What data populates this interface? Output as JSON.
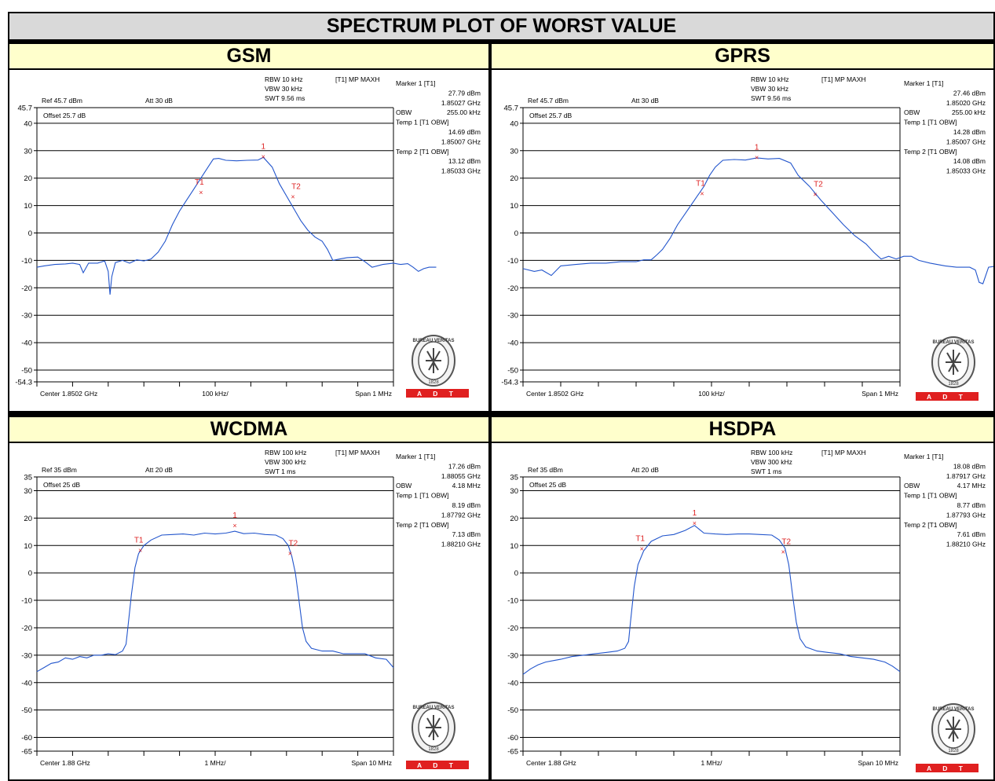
{
  "title": "SPECTRUM PLOT OF WORST VALUE",
  "sections": [
    "GSM",
    "GPRS",
    "WCDMA",
    "HSDPA"
  ],
  "colors": {
    "trace": "#2255cc",
    "marker": "#dd2222",
    "grid": "#000000",
    "header_title_bg": "#d9d9d9",
    "header_section_bg": "#ffffcc",
    "adt_red": "#e02020"
  },
  "logo": {
    "name": "bureau-veritas-seal",
    "text": "BUREAU VERITAS",
    "year": "1828",
    "badge": "A D T"
  },
  "chart_data": [
    {
      "type": "line",
      "panel": "GSM",
      "y_labels": [
        "45.7",
        "40",
        "30",
        "20",
        "10",
        "0",
        "-10",
        "-20",
        "-30",
        "-40",
        "-50",
        "-54.3"
      ],
      "ylim": [
        -54.3,
        45.7
      ],
      "settings": {
        "rbw": "RBW 10 kHz",
        "vbw": "VBW 30 kHz",
        "swt": "SWT 9.56 ms",
        "mode": "[T1] MP MAXH",
        "ref": "Ref 45.7 dBm",
        "att": "Att  30 dB",
        "offset": "Offset 25.7 dB"
      },
      "readout": [
        [
          "Marker 1 [T1]",
          ""
        ],
        [
          "",
          "27.79 dBm"
        ],
        [
          "",
          "1.85027 GHz"
        ],
        [
          "OBW",
          "255.00 kHz"
        ],
        [
          "Temp 1 [T1 OBW]",
          ""
        ],
        [
          "",
          "14.69 dBm"
        ],
        [
          "",
          "1.85007 GHz"
        ],
        [
          "Temp 2 [T1 OBW]",
          ""
        ],
        [
          "",
          "13.12 dBm"
        ],
        [
          "",
          "1.85033 GHz"
        ]
      ],
      "footer": {
        "center": "Center 1.8502 GHz",
        "div": "100 kHz/",
        "span": "Span 1 MHz"
      },
      "trace": [
        [
          0,
          -12.5
        ],
        [
          0.2,
          -12
        ],
        [
          0.5,
          -11.5
        ],
        [
          0.8,
          -11.3
        ],
        [
          1,
          -11
        ],
        [
          1.2,
          -11.5
        ],
        [
          1.3,
          -14.5
        ],
        [
          1.45,
          -11
        ],
        [
          1.7,
          -11
        ],
        [
          1.9,
          -10.2
        ],
        [
          2,
          -14
        ],
        [
          2.05,
          -22.5
        ],
        [
          2.1,
          -16
        ],
        [
          2.2,
          -10.8
        ],
        [
          2.4,
          -10
        ],
        [
          2.6,
          -11
        ],
        [
          2.8,
          -9.8
        ],
        [
          3,
          -10.2
        ],
        [
          3.2,
          -9.5
        ],
        [
          3.4,
          -7
        ],
        [
          3.6,
          -3
        ],
        [
          3.8,
          3
        ],
        [
          4,
          8
        ],
        [
          4.2,
          12
        ],
        [
          4.4,
          16
        ],
        [
          4.6,
          20
        ],
        [
          4.8,
          24
        ],
        [
          4.95,
          27
        ],
        [
          5.1,
          27.2
        ],
        [
          5.3,
          26.5
        ],
        [
          5.6,
          26.3
        ],
        [
          5.9,
          26.5
        ],
        [
          6.2,
          26.6
        ],
        [
          6.35,
          27.6
        ],
        [
          6.6,
          24
        ],
        [
          6.8,
          18
        ],
        [
          7,
          13.5
        ],
        [
          7.2,
          9
        ],
        [
          7.4,
          4.5
        ],
        [
          7.6,
          1
        ],
        [
          7.8,
          -1.5
        ],
        [
          8,
          -3
        ],
        [
          8.15,
          -6
        ],
        [
          8.3,
          -10
        ],
        [
          8.5,
          -9.5
        ],
        [
          8.7,
          -9
        ],
        [
          9,
          -8.8
        ],
        [
          9.2,
          -10.5
        ],
        [
          9.4,
          -12.5
        ],
        [
          9.7,
          -11.5
        ],
        [
          10,
          -11
        ],
        [
          10.2,
          -11.5
        ],
        [
          10.4,
          -11.2
        ],
        [
          10.55,
          -12.5
        ],
        [
          10.7,
          -14
        ],
        [
          10.85,
          -13
        ],
        [
          11,
          -12.5
        ],
        [
          11.2,
          -12.5
        ]
      ],
      "markers": [
        {
          "label": "1",
          "x": 6.35,
          "y": 27.79
        },
        {
          "label": "T1",
          "x": 4.6,
          "y": 14.69
        },
        {
          "label": "T2",
          "x": 7.18,
          "y": 13.12
        }
      ]
    },
    {
      "type": "line",
      "panel": "GPRS",
      "y_labels": [
        "45.7",
        "40",
        "30",
        "20",
        "10",
        "0",
        "-10",
        "-20",
        "-30",
        "-40",
        "-50",
        "-54.3"
      ],
      "ylim": [
        -54.3,
        45.7
      ],
      "settings": {
        "rbw": "RBW 10 kHz",
        "vbw": "VBW 30 kHz",
        "swt": "SWT 9.56 ms",
        "mode": "[T1] MP MAXH",
        "ref": "Ref 45.7 dBm",
        "att": "Att  30 dB",
        "offset": "Offset 25.7 dB"
      },
      "readout": [
        [
          "Marker 1 [T1]",
          ""
        ],
        [
          "",
          "27.46 dBm"
        ],
        [
          "",
          "1.85020 GHz"
        ],
        [
          "OBW",
          "255.00 kHz"
        ],
        [
          "Temp 1 [T1 OBW]",
          ""
        ],
        [
          "",
          "14.28 dBm"
        ],
        [
          "",
          "1.85007 GHz"
        ],
        [
          "Temp 2 [T1 OBW]",
          ""
        ],
        [
          "",
          "14.08 dBm"
        ],
        [
          "",
          "1.85033 GHz"
        ]
      ],
      "footer": {
        "center": "Center 1.8502 GHz",
        "div": "100 kHz/",
        "span": "Span 1 MHz"
      },
      "trace": [
        [
          0,
          -13
        ],
        [
          0.3,
          -14
        ],
        [
          0.5,
          -13.5
        ],
        [
          0.75,
          -15.5
        ],
        [
          1,
          -12
        ],
        [
          1.4,
          -11.5
        ],
        [
          1.8,
          -11
        ],
        [
          2.2,
          -11
        ],
        [
          2.6,
          -10.5
        ],
        [
          3,
          -10.5
        ],
        [
          3.2,
          -9.8
        ],
        [
          3.4,
          -9.8
        ],
        [
          3.55,
          -8
        ],
        [
          3.7,
          -6
        ],
        [
          3.9,
          -2
        ],
        [
          4.1,
          3
        ],
        [
          4.35,
          8
        ],
        [
          4.6,
          13
        ],
        [
          4.8,
          17
        ],
        [
          4.95,
          21
        ],
        [
          5.1,
          24
        ],
        [
          5.3,
          26.5
        ],
        [
          5.6,
          26.8
        ],
        [
          5.9,
          26.6
        ],
        [
          6.2,
          27.4
        ],
        [
          6.5,
          27
        ],
        [
          6.8,
          27.2
        ],
        [
          7.1,
          25.5
        ],
        [
          7.3,
          21
        ],
        [
          7.6,
          17
        ],
        [
          7.9,
          12
        ],
        [
          8.2,
          7.5
        ],
        [
          8.5,
          3
        ],
        [
          8.8,
          -1
        ],
        [
          9.1,
          -4
        ],
        [
          9.3,
          -7
        ],
        [
          9.5,
          -9.5
        ],
        [
          9.7,
          -8.5
        ],
        [
          9.9,
          -9.5
        ],
        [
          10.1,
          -8.5
        ],
        [
          10.3,
          -8.5
        ],
        [
          10.5,
          -10
        ],
        [
          10.8,
          -11
        ],
        [
          11.2,
          -12
        ],
        [
          11.5,
          -12.5
        ],
        [
          11.85,
          -12.5
        ],
        [
          12,
          -13.5
        ],
        [
          12.1,
          -18
        ],
        [
          12.2,
          -18.5
        ],
        [
          12.35,
          -12.5
        ],
        [
          12.6,
          -12
        ],
        [
          12.7,
          -13
        ]
      ],
      "markers": [
        {
          "label": "1",
          "x": 6.2,
          "y": 27.46
        },
        {
          "label": "T1",
          "x": 4.75,
          "y": 14.28
        },
        {
          "label": "T2",
          "x": 7.75,
          "y": 14.08
        }
      ]
    },
    {
      "type": "line",
      "panel": "WCDMA",
      "y_labels": [
        "35",
        "30",
        "20",
        "10",
        "0",
        "-10",
        "-20",
        "-30",
        "-40",
        "-50",
        "-60",
        "-65"
      ],
      "ylim": [
        -65,
        35
      ],
      "settings": {
        "rbw": "RBW 100 kHz",
        "vbw": "VBW 300 kHz",
        "swt": "SWT 1 ms",
        "mode": "[T1] MP MAXH",
        "ref": "Ref 35 dBm",
        "att": "Att  20 dB",
        "offset": "Offset 25 dB"
      },
      "readout": [
        [
          "Marker 1 [T1]",
          ""
        ],
        [
          "",
          "17.26 dBm"
        ],
        [
          "",
          "1.88055 GHz"
        ],
        [
          "OBW",
          "4.18 MHz"
        ],
        [
          "Temp 1 [T1 OBW]",
          ""
        ],
        [
          "",
          "8.19 dBm"
        ],
        [
          "",
          "1.87792 GHz"
        ],
        [
          "Temp 2 [T1 OBW]",
          ""
        ],
        [
          "",
          "7.13 dBm"
        ],
        [
          "",
          "1.88210 GHz"
        ]
      ],
      "footer": {
        "center": "Center 1.88 GHz",
        "div": "1 MHz/",
        "span": "Span 10 MHz"
      },
      "trace": [
        [
          0,
          -36
        ],
        [
          0.2,
          -34.5
        ],
        [
          0.4,
          -33
        ],
        [
          0.6,
          -32.5
        ],
        [
          0.8,
          -31
        ],
        [
          1,
          -31.5
        ],
        [
          1.2,
          -30.5
        ],
        [
          1.4,
          -31
        ],
        [
          1.6,
          -30
        ],
        [
          1.8,
          -30
        ],
        [
          2,
          -29.5
        ],
        [
          2.2,
          -29.8
        ],
        [
          2.4,
          -28.5
        ],
        [
          2.5,
          -26
        ],
        [
          2.55,
          -20
        ],
        [
          2.65,
          -8
        ],
        [
          2.75,
          2
        ],
        [
          2.85,
          7
        ],
        [
          3,
          10
        ],
        [
          3.2,
          12
        ],
        [
          3.5,
          13.8
        ],
        [
          3.8,
          14
        ],
        [
          4.1,
          14.2
        ],
        [
          4.4,
          13.8
        ],
        [
          4.7,
          14.5
        ],
        [
          5,
          14.2
        ],
        [
          5.3,
          14.5
        ],
        [
          5.55,
          15.2
        ],
        [
          5.8,
          14.3
        ],
        [
          6.1,
          14.5
        ],
        [
          6.4,
          14
        ],
        [
          6.7,
          13.8
        ],
        [
          6.9,
          12.5
        ],
        [
          7.05,
          10
        ],
        [
          7.15,
          6
        ],
        [
          7.25,
          0
        ],
        [
          7.35,
          -10
        ],
        [
          7.45,
          -20
        ],
        [
          7.55,
          -25
        ],
        [
          7.7,
          -27.5
        ],
        [
          8,
          -28.5
        ],
        [
          8.3,
          -28.5
        ],
        [
          8.6,
          -29.5
        ],
        [
          8.9,
          -29.5
        ],
        [
          9.2,
          -29.5
        ],
        [
          9.5,
          -31
        ],
        [
          9.8,
          -31.5
        ],
        [
          10,
          -34.5
        ]
      ],
      "markers": [
        {
          "label": "1",
          "x": 5.55,
          "y": 17.26
        },
        {
          "label": "T1",
          "x": 2.9,
          "y": 8.19
        },
        {
          "label": "T2",
          "x": 7.1,
          "y": 7.13
        }
      ]
    },
    {
      "type": "line",
      "panel": "HSDPA",
      "y_labels": [
        "35",
        "30",
        "20",
        "10",
        "0",
        "-10",
        "-20",
        "-30",
        "-40",
        "-50",
        "-60",
        "-65"
      ],
      "ylim": [
        -65,
        35
      ],
      "settings": {
        "rbw": "RBW 100 kHz",
        "vbw": "VBW 300 kHz",
        "swt": "SWT 1 ms",
        "mode": "[T1] MP MAXH",
        "ref": "Ref 35 dBm",
        "att": "Att  20 dB",
        "offset": "Offset 25 dB"
      },
      "readout": [
        [
          "Marker 1 [T1]",
          ""
        ],
        [
          "",
          "18.08 dBm"
        ],
        [
          "",
          "1.87917 GHz"
        ],
        [
          "OBW",
          "4.17 MHz"
        ],
        [
          "Temp 1 [T1 OBW]",
          ""
        ],
        [
          "",
          "8.77 dBm"
        ],
        [
          "",
          "1.87793 GHz"
        ],
        [
          "Temp 2 [T1 OBW]",
          ""
        ],
        [
          "",
          "7.61 dBm"
        ],
        [
          "",
          "1.88210 GHz"
        ]
      ],
      "footer": {
        "center": "Center 1.88 GHz",
        "div": "1 MHz/",
        "span": "Span 10 MHz"
      },
      "trace": [
        [
          0,
          -37
        ],
        [
          0.2,
          -35
        ],
        [
          0.4,
          -33.5
        ],
        [
          0.6,
          -32.5
        ],
        [
          0.8,
          -32
        ],
        [
          1,
          -31.5
        ],
        [
          1.3,
          -30.5
        ],
        [
          1.6,
          -30
        ],
        [
          1.9,
          -29.5
        ],
        [
          2.2,
          -29
        ],
        [
          2.5,
          -28.5
        ],
        [
          2.7,
          -27.5
        ],
        [
          2.8,
          -25
        ],
        [
          2.85,
          -18
        ],
        [
          2.95,
          -5
        ],
        [
          3.05,
          3
        ],
        [
          3.2,
          8
        ],
        [
          3.4,
          11.5
        ],
        [
          3.7,
          13.5
        ],
        [
          4,
          14
        ],
        [
          4.3,
          15.5
        ],
        [
          4.55,
          17.3
        ],
        [
          4.8,
          14.5
        ],
        [
          5.1,
          14.2
        ],
        [
          5.4,
          14
        ],
        [
          5.7,
          14.2
        ],
        [
          6,
          14.2
        ],
        [
          6.3,
          14
        ],
        [
          6.6,
          13.8
        ],
        [
          6.8,
          12
        ],
        [
          6.95,
          9
        ],
        [
          7.05,
          3
        ],
        [
          7.15,
          -8
        ],
        [
          7.25,
          -18
        ],
        [
          7.35,
          -24
        ],
        [
          7.5,
          -27
        ],
        [
          7.8,
          -28.5
        ],
        [
          8.1,
          -29
        ],
        [
          8.4,
          -29.5
        ],
        [
          8.7,
          -30.5
        ],
        [
          9,
          -31
        ],
        [
          9.3,
          -31.5
        ],
        [
          9.6,
          -32.5
        ],
        [
          9.8,
          -34
        ],
        [
          10,
          -36
        ]
      ],
      "markers": [
        {
          "label": "1",
          "x": 4.55,
          "y": 18.08
        },
        {
          "label": "T1",
          "x": 3.15,
          "y": 8.77
        },
        {
          "label": "T2",
          "x": 6.9,
          "y": 7.61
        }
      ]
    }
  ]
}
